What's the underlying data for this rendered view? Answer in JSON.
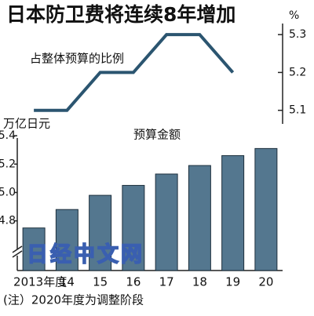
{
  "title": "日本防卫费将连续8年增加",
  "watermark": "日经中文网",
  "note": "(注）2020年度为调整阶段",
  "chart_data": [
    {
      "type": "line",
      "title": "占整体预算的比例",
      "y_label": "%",
      "values": [
        5.1,
        5.1,
        5.2,
        5.2,
        5.3,
        5.3,
        5.2,
        null
      ],
      "color": "#2b5570",
      "ylim": [
        5.06,
        5.35
      ],
      "yticks": [
        5.1,
        5.2,
        5.3
      ]
    },
    {
      "type": "bar",
      "title": "预算金额",
      "y_label": "万亿日元",
      "categories": [
        "2013年度",
        "14",
        "15",
        "16",
        "17",
        "18",
        "19",
        "20"
      ],
      "values": [
        4.75,
        4.88,
        4.98,
        5.05,
        5.13,
        5.19,
        5.26,
        5.31
      ],
      "color": "#54778f",
      "ylim": [
        4.45,
        5.5
      ],
      "yticks": [
        {
          "value": 4.8,
          "label": "4.8"
        },
        {
          "value": 5,
          "label": "5.0"
        },
        {
          "value": 5.2,
          "label": "5.2"
        },
        {
          "value": 5.4,
          "label": "5.4"
        }
      ]
    }
  ]
}
